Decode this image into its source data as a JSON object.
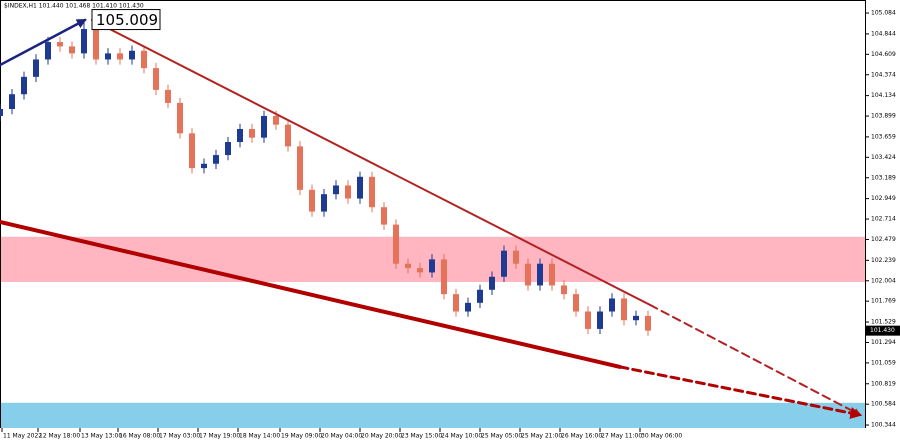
{
  "chart_data": {
    "type": "candlestick",
    "header": "$INDEX,H1  101.440 101.468 101.410 101.430",
    "up_color": "#1f3a93",
    "down_color": "#e5735a",
    "xlim": [
      0,
      432.5
    ],
    "ylim": [
      100.31,
      105.234
    ],
    "yticks": [
      105.084,
      104.844,
      104.609,
      104.374,
      104.134,
      103.899,
      103.659,
      103.424,
      103.189,
      102.949,
      102.714,
      102.479,
      102.239,
      102.004,
      101.769,
      101.529,
      101.294,
      101.059,
      100.819,
      100.584,
      100.344
    ],
    "xticks": [
      {
        "value": 1,
        "label": "11 May 2022"
      },
      {
        "value": 19,
        "label": "12 May 18:00"
      },
      {
        "value": 40,
        "label": "13 May 13:00"
      },
      {
        "value": 59,
        "label": "16 May 08:00"
      },
      {
        "value": 79,
        "label": "17 May 03:00"
      },
      {
        "value": 99,
        "label": "17 May 19:00"
      },
      {
        "value": 119,
        "label": "18 May 14:00"
      },
      {
        "value": 140,
        "label": "19 May 09:00"
      },
      {
        "value": 160,
        "label": "20 May 04:00"
      },
      {
        "value": 180,
        "label": "20 May 20:00"
      },
      {
        "value": 200,
        "label": "23 May 15:00"
      },
      {
        "value": 220,
        "label": "24 May 10:00"
      },
      {
        "value": 240,
        "label": "25 May 05:00"
      },
      {
        "value": 260,
        "label": "25 May 21:00"
      },
      {
        "value": 280,
        "label": "26 May 16:00"
      },
      {
        "value": 300,
        "label": "27 May 11:00"
      },
      {
        "value": 320,
        "label": "30 May 06:00"
      }
    ],
    "x": [
      0,
      6,
      12,
      18,
      24,
      30,
      36,
      42,
      48,
      54,
      60,
      66,
      72,
      78,
      84,
      90,
      96,
      102,
      108,
      114,
      120,
      126,
      132,
      138,
      144,
      150,
      156,
      162,
      168,
      174,
      180,
      186,
      192,
      198,
      204,
      210,
      216,
      222,
      228,
      234,
      240,
      246,
      252,
      258,
      264,
      270,
      276,
      282,
      288,
      294,
      300,
      306,
      312,
      318,
      324
    ],
    "open": [
      103.9,
      103.98,
      104.15,
      104.35,
      104.55,
      104.75,
      104.7,
      104.62,
      104.9,
      104.55,
      104.62,
      104.55,
      104.65,
      104.45,
      104.2,
      104.05,
      103.7,
      103.3,
      103.35,
      103.45,
      103.6,
      103.75,
      103.65,
      103.9,
      103.8,
      103.55,
      103.05,
      102.8,
      103.0,
      103.1,
      102.95,
      103.2,
      102.85,
      102.65,
      102.2,
      102.15,
      102.1,
      102.25,
      101.85,
      101.65,
      101.75,
      101.9,
      102.05,
      102.35,
      102.2,
      101.95,
      102.2,
      101.95,
      101.85,
      101.65,
      101.45,
      101.65,
      101.8,
      101.55,
      101.6
    ],
    "high": [
      104.04,
      104.21,
      104.41,
      104.61,
      104.81,
      104.81,
      104.76,
      105.009,
      104.96,
      104.68,
      104.68,
      104.71,
      104.71,
      104.51,
      104.26,
      104.11,
      103.76,
      103.41,
      103.51,
      103.66,
      103.81,
      103.81,
      103.96,
      103.96,
      103.86,
      103.61,
      103.11,
      103.06,
      103.16,
      103.16,
      103.26,
      103.26,
      102.91,
      102.71,
      102.26,
      102.21,
      102.31,
      102.31,
      101.91,
      101.81,
      101.96,
      102.11,
      102.41,
      102.41,
      102.26,
      102.26,
      102.26,
      102.01,
      101.91,
      101.71,
      101.71,
      101.86,
      101.86,
      101.66,
      101.66
    ],
    "low": [
      103.84,
      103.92,
      104.09,
      104.29,
      104.49,
      104.64,
      104.56,
      104.56,
      104.49,
      104.49,
      104.49,
      104.49,
      104.39,
      104.14,
      103.99,
      103.64,
      103.24,
      103.24,
      103.29,
      103.39,
      103.54,
      103.59,
      103.59,
      103.74,
      103.49,
      102.99,
      102.74,
      102.74,
      102.94,
      102.89,
      102.89,
      102.79,
      102.59,
      102.14,
      102.09,
      102.04,
      102.04,
      101.79,
      101.59,
      101.59,
      101.69,
      101.84,
      101.99,
      102.14,
      101.89,
      101.89,
      101.89,
      101.79,
      101.59,
      101.39,
      101.39,
      101.59,
      101.49,
      101.49,
      101.37
    ],
    "close": [
      103.98,
      104.15,
      104.35,
      104.55,
      104.75,
      104.7,
      104.62,
      104.9,
      104.55,
      104.62,
      104.55,
      104.65,
      104.45,
      104.2,
      104.05,
      103.7,
      103.3,
      103.35,
      103.45,
      103.6,
      103.75,
      103.65,
      103.9,
      103.8,
      103.55,
      103.05,
      102.8,
      103.0,
      103.1,
      102.95,
      103.2,
      102.85,
      102.65,
      102.2,
      102.15,
      102.1,
      102.25,
      101.85,
      101.65,
      101.75,
      101.9,
      102.05,
      102.35,
      102.2,
      101.95,
      102.2,
      101.95,
      101.85,
      101.65,
      101.45,
      101.65,
      101.8,
      101.55,
      101.6,
      101.43
    ],
    "zones": [
      {
        "from": 101.99,
        "to": 102.51,
        "color": "#ffb6c1"
      },
      {
        "from": 100.31,
        "to": 100.6,
        "color": "#87ceeb"
      }
    ],
    "trendlines": [
      {
        "color": "#b22222",
        "width": 2,
        "dashed": false,
        "arrow": false,
        "points": [
          [
            46,
            105.004
          ],
          [
            325,
            101.726
          ]
        ]
      },
      {
        "color": "#b22222",
        "width": 2,
        "dashed": true,
        "arrow": true,
        "points": [
          [
            325,
            101.726
          ],
          [
            430,
            100.461
          ]
        ]
      },
      {
        "color": "#b00000",
        "width": 4,
        "dashed": false,
        "arrow": false,
        "points": [
          [
            0,
            102.68
          ],
          [
            310,
            101.013
          ]
        ]
      },
      {
        "color": "#b00000",
        "width": 3,
        "dashed": true,
        "arrow": true,
        "points": [
          [
            310,
            101.013
          ],
          [
            430,
            100.461
          ]
        ]
      },
      {
        "color": "#1a237e",
        "width": 2.5,
        "dashed": false,
        "arrow": true,
        "points": [
          [
            0,
            104.486
          ],
          [
            42.5,
            105.004
          ]
        ]
      }
    ],
    "peak_label": {
      "x": 46,
      "value": 105.009,
      "label": "105.009"
    },
    "last_price": {
      "value": 101.43,
      "label": "101.430"
    }
  }
}
